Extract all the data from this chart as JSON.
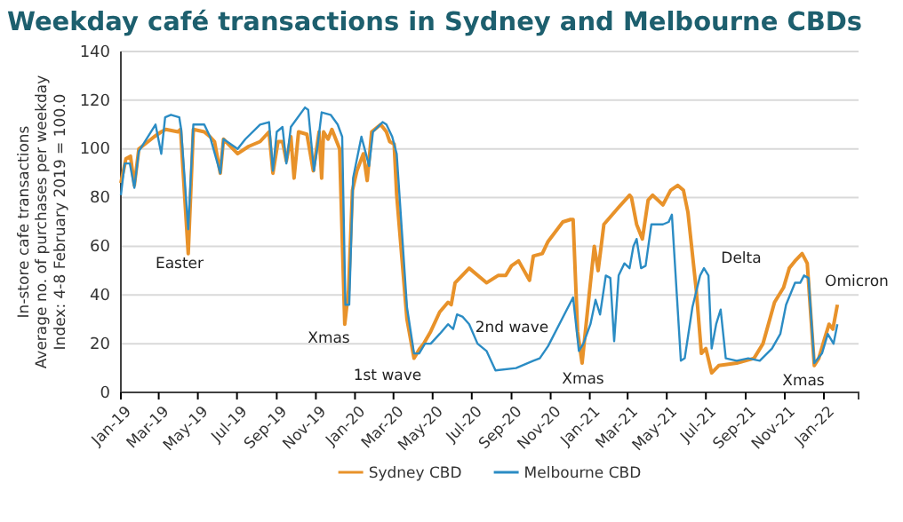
{
  "chart_data": {
    "type": "line",
    "title": "Weekday café transactions in Sydney and Melbourne CBDs",
    "ylabel": "In-store cafe transactions\nAverage no. of purchases per weekday\nIndex: 4-8 February 2019 = 100.0",
    "xlim": [
      "2019-01-01",
      "2022-02-24"
    ],
    "ylim": [
      0,
      140
    ],
    "yticks": [
      0,
      20,
      40,
      60,
      80,
      100,
      120,
      140
    ],
    "xticks": [
      {
        "value": "2019-01-01",
        "label": "Jan-19"
      },
      {
        "value": "2019-03-01",
        "label": "Mar-19"
      },
      {
        "value": "2019-05-01",
        "label": "May-19"
      },
      {
        "value": "2019-07-01",
        "label": "Jul-19"
      },
      {
        "value": "2019-09-01",
        "label": "Sep-19"
      },
      {
        "value": "2019-11-01",
        "label": "Nov-19"
      },
      {
        "value": "2020-01-01",
        "label": "Jan-20"
      },
      {
        "value": "2020-03-01",
        "label": "Mar-20"
      },
      {
        "value": "2020-05-01",
        "label": "May-20"
      },
      {
        "value": "2020-07-01",
        "label": "Jul-20"
      },
      {
        "value": "2020-09-01",
        "label": "Sep-20"
      },
      {
        "value": "2020-11-01",
        "label": "Nov-20"
      },
      {
        "value": "2021-01-01",
        "label": "Jan-21"
      },
      {
        "value": "2021-03-01",
        "label": "Mar-21"
      },
      {
        "value": "2021-05-01",
        "label": "May-21"
      },
      {
        "value": "2021-07-01",
        "label": "Jul-21"
      },
      {
        "value": "2021-09-01",
        "label": "Sep-21"
      },
      {
        "value": "2021-11-01",
        "label": "Nov-21"
      },
      {
        "value": "2022-01-01",
        "label": "Jan-22"
      }
    ],
    "grid": "y",
    "legend": "bottom",
    "line_style": "solid",
    "series": [
      {
        "name": "Sydney CBD",
        "color": "#e8922a",
        "x": [
          "2019-01-01",
          "2019-01-09",
          "2019-01-16",
          "2019-01-22",
          "2019-01-29",
          "2019-02-22",
          "2019-03-05",
          "2019-03-12",
          "2019-03-31",
          "2019-04-04",
          "2019-04-16",
          "2019-04-24",
          "2019-05-11",
          "2019-05-20",
          "2019-05-27",
          "2019-06-05",
          "2019-06-10",
          "2019-07-02",
          "2019-07-19",
          "2019-08-06",
          "2019-08-20",
          "2019-08-26",
          "2019-09-03",
          "2019-09-10",
          "2019-09-16",
          "2019-09-23",
          "2019-09-28",
          "2019-10-05",
          "2019-10-18",
          "2019-10-28",
          "2019-11-06",
          "2019-11-10",
          "2019-11-13",
          "2019-11-20",
          "2019-11-26",
          "2019-12-08",
          "2019-12-16",
          "2019-12-22",
          "2019-12-28",
          "2020-01-04",
          "2020-01-14",
          "2020-01-20",
          "2020-01-27",
          "2020-02-10",
          "2020-02-19",
          "2020-02-24",
          "2020-03-02",
          "2020-03-06",
          "2020-03-22",
          "2020-04-02",
          "2020-04-11",
          "2020-04-17",
          "2020-04-28",
          "2020-05-12",
          "2020-05-25",
          "2020-05-30",
          "2020-06-05",
          "2020-06-27",
          "2020-07-24",
          "2020-08-11",
          "2020-08-23",
          "2020-09-01",
          "2020-09-12",
          "2020-09-29",
          "2020-10-05",
          "2020-10-19",
          "2020-10-28",
          "2020-11-20",
          "2020-12-02",
          "2020-12-06",
          "2020-12-13",
          "2020-12-20",
          "2020-12-31",
          "2021-01-08",
          "2021-01-14",
          "2021-01-23",
          "2021-02-15",
          "2021-03-04",
          "2021-03-07",
          "2021-03-15",
          "2021-03-24",
          "2021-04-02",
          "2021-04-09",
          "2021-04-25",
          "2021-05-07",
          "2021-05-18",
          "2021-05-27",
          "2021-06-03",
          "2021-06-16",
          "2021-06-24",
          "2021-07-01",
          "2021-07-10",
          "2021-07-21",
          "2021-08-18",
          "2021-09-14",
          "2021-09-28",
          "2021-10-16",
          "2021-10-30",
          "2021-11-08",
          "2021-11-17",
          "2021-11-28",
          "2021-12-06",
          "2021-12-17",
          "2021-12-24",
          "2022-01-02",
          "2022-01-09",
          "2022-01-15",
          "2022-01-22"
        ],
        "values": [
          86,
          96,
          97,
          85,
          100,
          105,
          107,
          108,
          107,
          108,
          57,
          108,
          107,
          105,
          103,
          90,
          104,
          98,
          101,
          103,
          107,
          90,
          103,
          103,
          95,
          105,
          88,
          107,
          106,
          91,
          107,
          88,
          107,
          104,
          108,
          100,
          28,
          42,
          83,
          91,
          98,
          87,
          107,
          110,
          107,
          103,
          102,
          81,
          30,
          14,
          18,
          20,
          25,
          33,
          37,
          36,
          45,
          51,
          45,
          48,
          48,
          52,
          54,
          46,
          56,
          57,
          62,
          70,
          71,
          71,
          25,
          12,
          40,
          60,
          50,
          69,
          76,
          81,
          80,
          69,
          63,
          79,
          81,
          77,
          83,
          85,
          83,
          74,
          42,
          16,
          18,
          8,
          11,
          12,
          14,
          20,
          37,
          43,
          51,
          54,
          57,
          53,
          11,
          14,
          22,
          28,
          26,
          36
        ]
      },
      {
        "name": "Melbourne CBD",
        "color": "#2b8cc4",
        "x": [
          "2019-01-01",
          "2019-01-07",
          "2019-01-15",
          "2019-01-22",
          "2019-01-29",
          "2019-02-24",
          "2019-03-05",
          "2019-03-11",
          "2019-03-20",
          "2019-04-02",
          "2019-04-05",
          "2019-04-16",
          "2019-04-24",
          "2019-05-11",
          "2019-05-20",
          "2019-06-05",
          "2019-06-10",
          "2019-07-02",
          "2019-07-14",
          "2019-08-06",
          "2019-08-20",
          "2019-08-26",
          "2019-09-01",
          "2019-09-10",
          "2019-09-16",
          "2019-09-23",
          "2019-10-15",
          "2019-10-20",
          "2019-10-29",
          "2019-11-04",
          "2019-11-10",
          "2019-11-24",
          "2019-12-05",
          "2019-12-12",
          "2019-12-17",
          "2019-12-23",
          "2019-12-29",
          "2020-01-11",
          "2020-01-23",
          "2020-01-29",
          "2020-02-13",
          "2020-02-19",
          "2020-02-28",
          "2020-03-06",
          "2020-03-22",
          "2020-04-02",
          "2020-04-10",
          "2020-04-19",
          "2020-04-28",
          "2020-05-12",
          "2020-05-25",
          "2020-06-02",
          "2020-06-08",
          "2020-06-17",
          "2020-06-27",
          "2020-07-10",
          "2020-07-24",
          "2020-08-07",
          "2020-09-08",
          "2020-10-05",
          "2020-10-15",
          "2020-10-28",
          "2020-12-06",
          "2020-12-15",
          "2020-12-22",
          "2021-01-02",
          "2021-01-10",
          "2021-01-17",
          "2021-01-26",
          "2021-02-02",
          "2021-02-08",
          "2021-02-15",
          "2021-02-24",
          "2021-03-04",
          "2021-03-10",
          "2021-03-15",
          "2021-03-22",
          "2021-03-29",
          "2021-04-07",
          "2021-04-25",
          "2021-05-04",
          "2021-05-09",
          "2021-05-23",
          "2021-05-29",
          "2021-06-10",
          "2021-06-22",
          "2021-06-28",
          "2021-07-05",
          "2021-07-10",
          "2021-07-17",
          "2021-07-24",
          "2021-08-01",
          "2021-08-18",
          "2021-09-05",
          "2021-09-23",
          "2021-10-12",
          "2021-10-25",
          "2021-11-03",
          "2021-11-17",
          "2021-11-25",
          "2021-12-01",
          "2021-12-08",
          "2021-12-17",
          "2021-12-29",
          "2022-01-07",
          "2022-01-16",
          "2022-01-22"
        ],
        "values": [
          81,
          94,
          94,
          84,
          99,
          110,
          98,
          113,
          114,
          113,
          108,
          67,
          110,
          110,
          105,
          90,
          104,
          100,
          104,
          110,
          111,
          91,
          107,
          109,
          94,
          109,
          117,
          116,
          91,
          102,
          115,
          114,
          110,
          105,
          36,
          36,
          88,
          105,
          93,
          107,
          111,
          110,
          105,
          98,
          35,
          16,
          16,
          20,
          20,
          24,
          28,
          26,
          32,
          31,
          28,
          20,
          17,
          9,
          10,
          13,
          14,
          19,
          39,
          17,
          20,
          28,
          38,
          32,
          48,
          47,
          21,
          48,
          53,
          51,
          60,
          63,
          51,
          52,
          69,
          69,
          70,
          73,
          13,
          14,
          35,
          48,
          51,
          48,
          18,
          28,
          34,
          14,
          13,
          14,
          13,
          18,
          24,
          36,
          45,
          45,
          48,
          47,
          12,
          16,
          24,
          20,
          28
        ]
      }
    ],
    "annotations": [
      "Easter",
      "Xmas",
      "1st wave",
      "2nd wave",
      "Xmas",
      "Delta",
      "Xmas",
      "Omicron"
    ]
  }
}
